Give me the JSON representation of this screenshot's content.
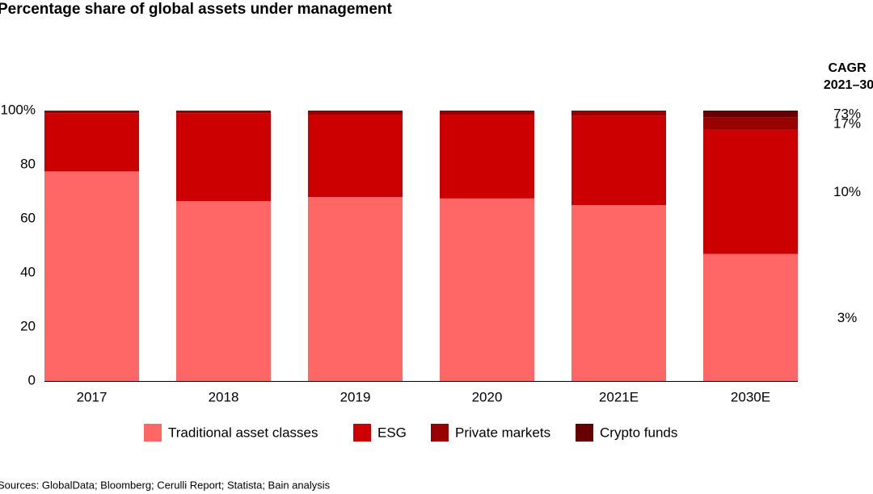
{
  "chart_data": {
    "type": "stacked_bar",
    "title": "Percentage share of global assets under management",
    "categories": [
      "2017",
      "2018",
      "2019",
      "2020",
      "2021E",
      "2030E"
    ],
    "series": [
      {
        "name": "Traditional asset classes",
        "color": "#ff6666",
        "values": [
          77.5,
          66.5,
          68,
          67.5,
          65,
          47
        ]
      },
      {
        "name": "ESG",
        "color": "#cc0000",
        "values": [
          21.5,
          32.5,
          30.5,
          31,
          33,
          46
        ]
      },
      {
        "name": "Private markets",
        "color": "#990000",
        "values": [
          1,
          1,
          1.5,
          1.5,
          2,
          4.5
        ]
      },
      {
        "name": "Crypto funds",
        "color": "#660000",
        "values": [
          0,
          0,
          0,
          0,
          0,
          2.5
        ]
      }
    ],
    "ylim": [
      0,
      100
    ],
    "yticks": [
      0,
      20,
      40,
      60,
      80,
      {
        "value": 100,
        "label": "100%"
      }
    ],
    "grid": false,
    "legend_position": "bottom",
    "cagr_title": [
      "CAGR",
      "2021–30"
    ],
    "cagr_labels": [
      "3%",
      "10%",
      "17%",
      "73%"
    ],
    "source": "Sources: GlobalData; Bloomberg; Cerulli Report; Statista; Bain analysis"
  }
}
